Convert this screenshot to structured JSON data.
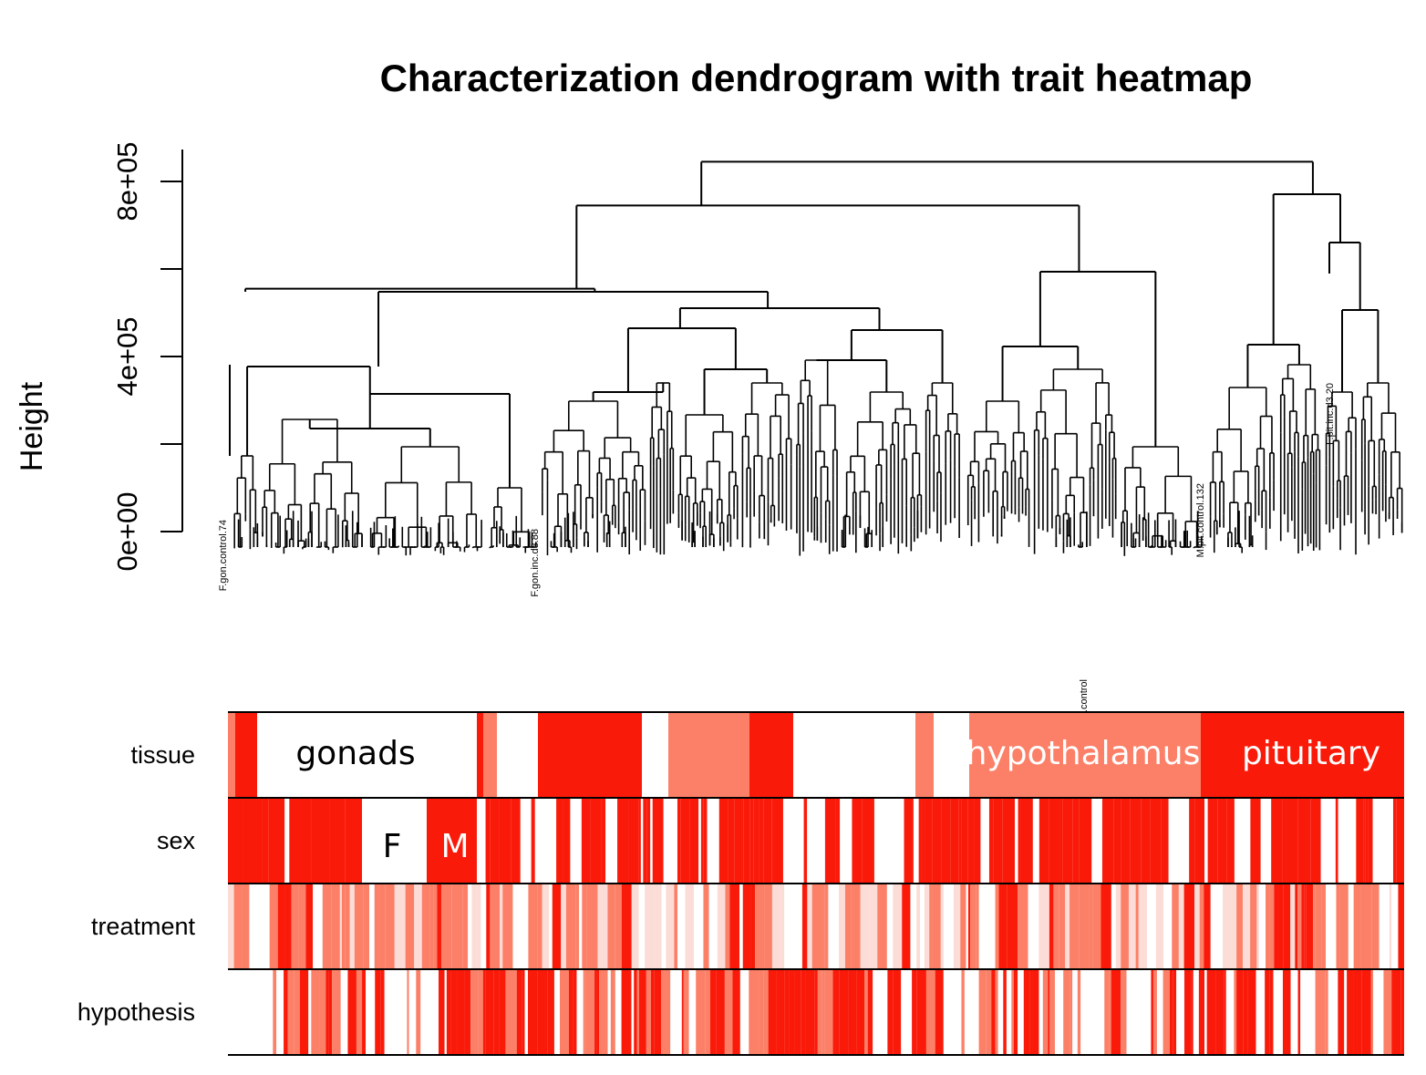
{
  "chart_data": {
    "type": "heatmap",
    "title": "Characterization dendrogram with trait heatmap",
    "ylabel": "Height",
    "ylim": [
      0,
      900000
    ],
    "yticks": [
      {
        "value": 0,
        "label": "0e+00"
      },
      {
        "value": 200000,
        "label": ""
      },
      {
        "value": 400000,
        "label": "4e+05"
      },
      {
        "value": 600000,
        "label": ""
      },
      {
        "value": 800000,
        "label": "8e+05"
      }
    ],
    "grid": false,
    "legend": "none",
    "colors": {
      "strong": "#fa1a0a",
      "medium": "#fc8068",
      "light": "#fcdcd6",
      "none": "#ffffff",
      "line": "#000000"
    },
    "dendrogram": {
      "n_leaves": 600,
      "major_merges": [
        {
          "left_leaf": 5,
          "right_leaf": 0,
          "height": 930
        },
        {
          "height": 845000
        },
        {
          "height": 745000
        },
        {
          "height": 555000
        },
        {
          "height": 590000
        },
        {
          "height": 660000
        },
        {
          "height": 465000
        }
      ],
      "visible_leaf_labels": [
        "F.gon.control.74",
        "F.pit.inc.d3.20",
        "M.pit.control.132",
        "F.hyp.control",
        "F.gon.inc.d3.88"
      ]
    },
    "trait_rows": [
      {
        "name": "tissue",
        "annotations": [
          {
            "text": "gonads",
            "color": "#000000"
          },
          {
            "text": "hypothalamus",
            "color": "#ffffff"
          },
          {
            "text": "pituitary",
            "color": "#ffffff"
          }
        ]
      },
      {
        "name": "sex",
        "annotations": [
          {
            "text": "F",
            "color": "#000000"
          },
          {
            "text": "M",
            "color": "#ffffff"
          }
        ]
      },
      {
        "name": "treatment",
        "annotations": []
      },
      {
        "name": "hypothesis",
        "annotations": []
      }
    ]
  }
}
